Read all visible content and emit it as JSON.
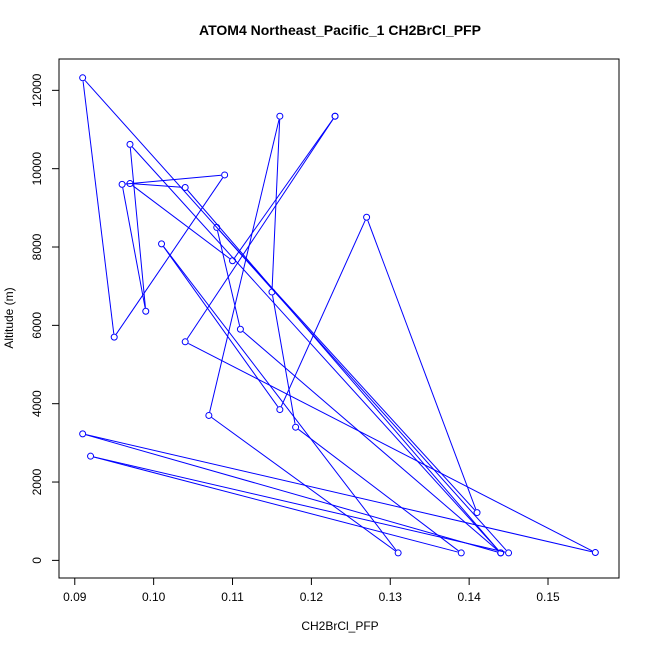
{
  "chart_data": {
    "type": "line",
    "title": "ATOM4 Northeast_Pacific_1 CH2BrCl_PFP",
    "xlabel": "CH2BrCl_PFP",
    "ylabel": "Altitude (m)",
    "xlim": [
      0.088,
      0.159
    ],
    "ylim": [
      -450,
      12800
    ],
    "xticks": [
      0.09,
      0.1,
      0.11,
      0.12,
      0.13,
      0.14,
      0.15
    ],
    "xtick_labels": [
      "0.09",
      "0.10",
      "0.11",
      "0.12",
      "0.13",
      "0.14",
      "0.15"
    ],
    "yticks": [
      0,
      2000,
      4000,
      6000,
      8000,
      10000,
      12000
    ],
    "ytick_labels": [
      "0",
      "2000",
      "4000",
      "6000",
      "8000",
      "10000",
      "12000"
    ],
    "grid": false,
    "series": [
      {
        "color": "#0000ff",
        "marker": "open-circle",
        "points": [
          {
            "x": 0.123,
            "y": 11340
          },
          {
            "x": 0.104,
            "y": 5580
          },
          {
            "x": 0.156,
            "y": 200
          },
          {
            "x": 0.091,
            "y": 3230
          },
          {
            "x": 0.144,
            "y": 190
          },
          {
            "x": 0.097,
            "y": 10620
          },
          {
            "x": 0.099,
            "y": 6360
          },
          {
            "x": 0.096,
            "y": 9600
          },
          {
            "x": 0.109,
            "y": 9840
          },
          {
            "x": 0.095,
            "y": 5700
          },
          {
            "x": 0.091,
            "y": 12320
          },
          {
            "x": 0.145,
            "y": 190
          },
          {
            "x": 0.092,
            "y": 2660
          },
          {
            "x": 0.139,
            "y": 190
          },
          {
            "x": 0.118,
            "y": 3400
          },
          {
            "x": 0.115,
            "y": 6850
          },
          {
            "x": 0.116,
            "y": 11340
          },
          {
            "x": 0.107,
            "y": 3700
          },
          {
            "x": 0.131,
            "y": 190
          },
          {
            "x": 0.101,
            "y": 8080
          },
          {
            "x": 0.116,
            "y": 3850
          },
          {
            "x": 0.127,
            "y": 8760
          },
          {
            "x": 0.141,
            "y": 1220
          },
          {
            "x": 0.108,
            "y": 8500
          },
          {
            "x": 0.111,
            "y": 5900
          },
          {
            "x": 0.144,
            "y": 190
          },
          {
            "x": 0.104,
            "y": 9520
          },
          {
            "x": 0.097,
            "y": 9620
          },
          {
            "x": 0.11,
            "y": 7650
          },
          {
            "x": 0.123,
            "y": 11340
          }
        ]
      }
    ]
  }
}
